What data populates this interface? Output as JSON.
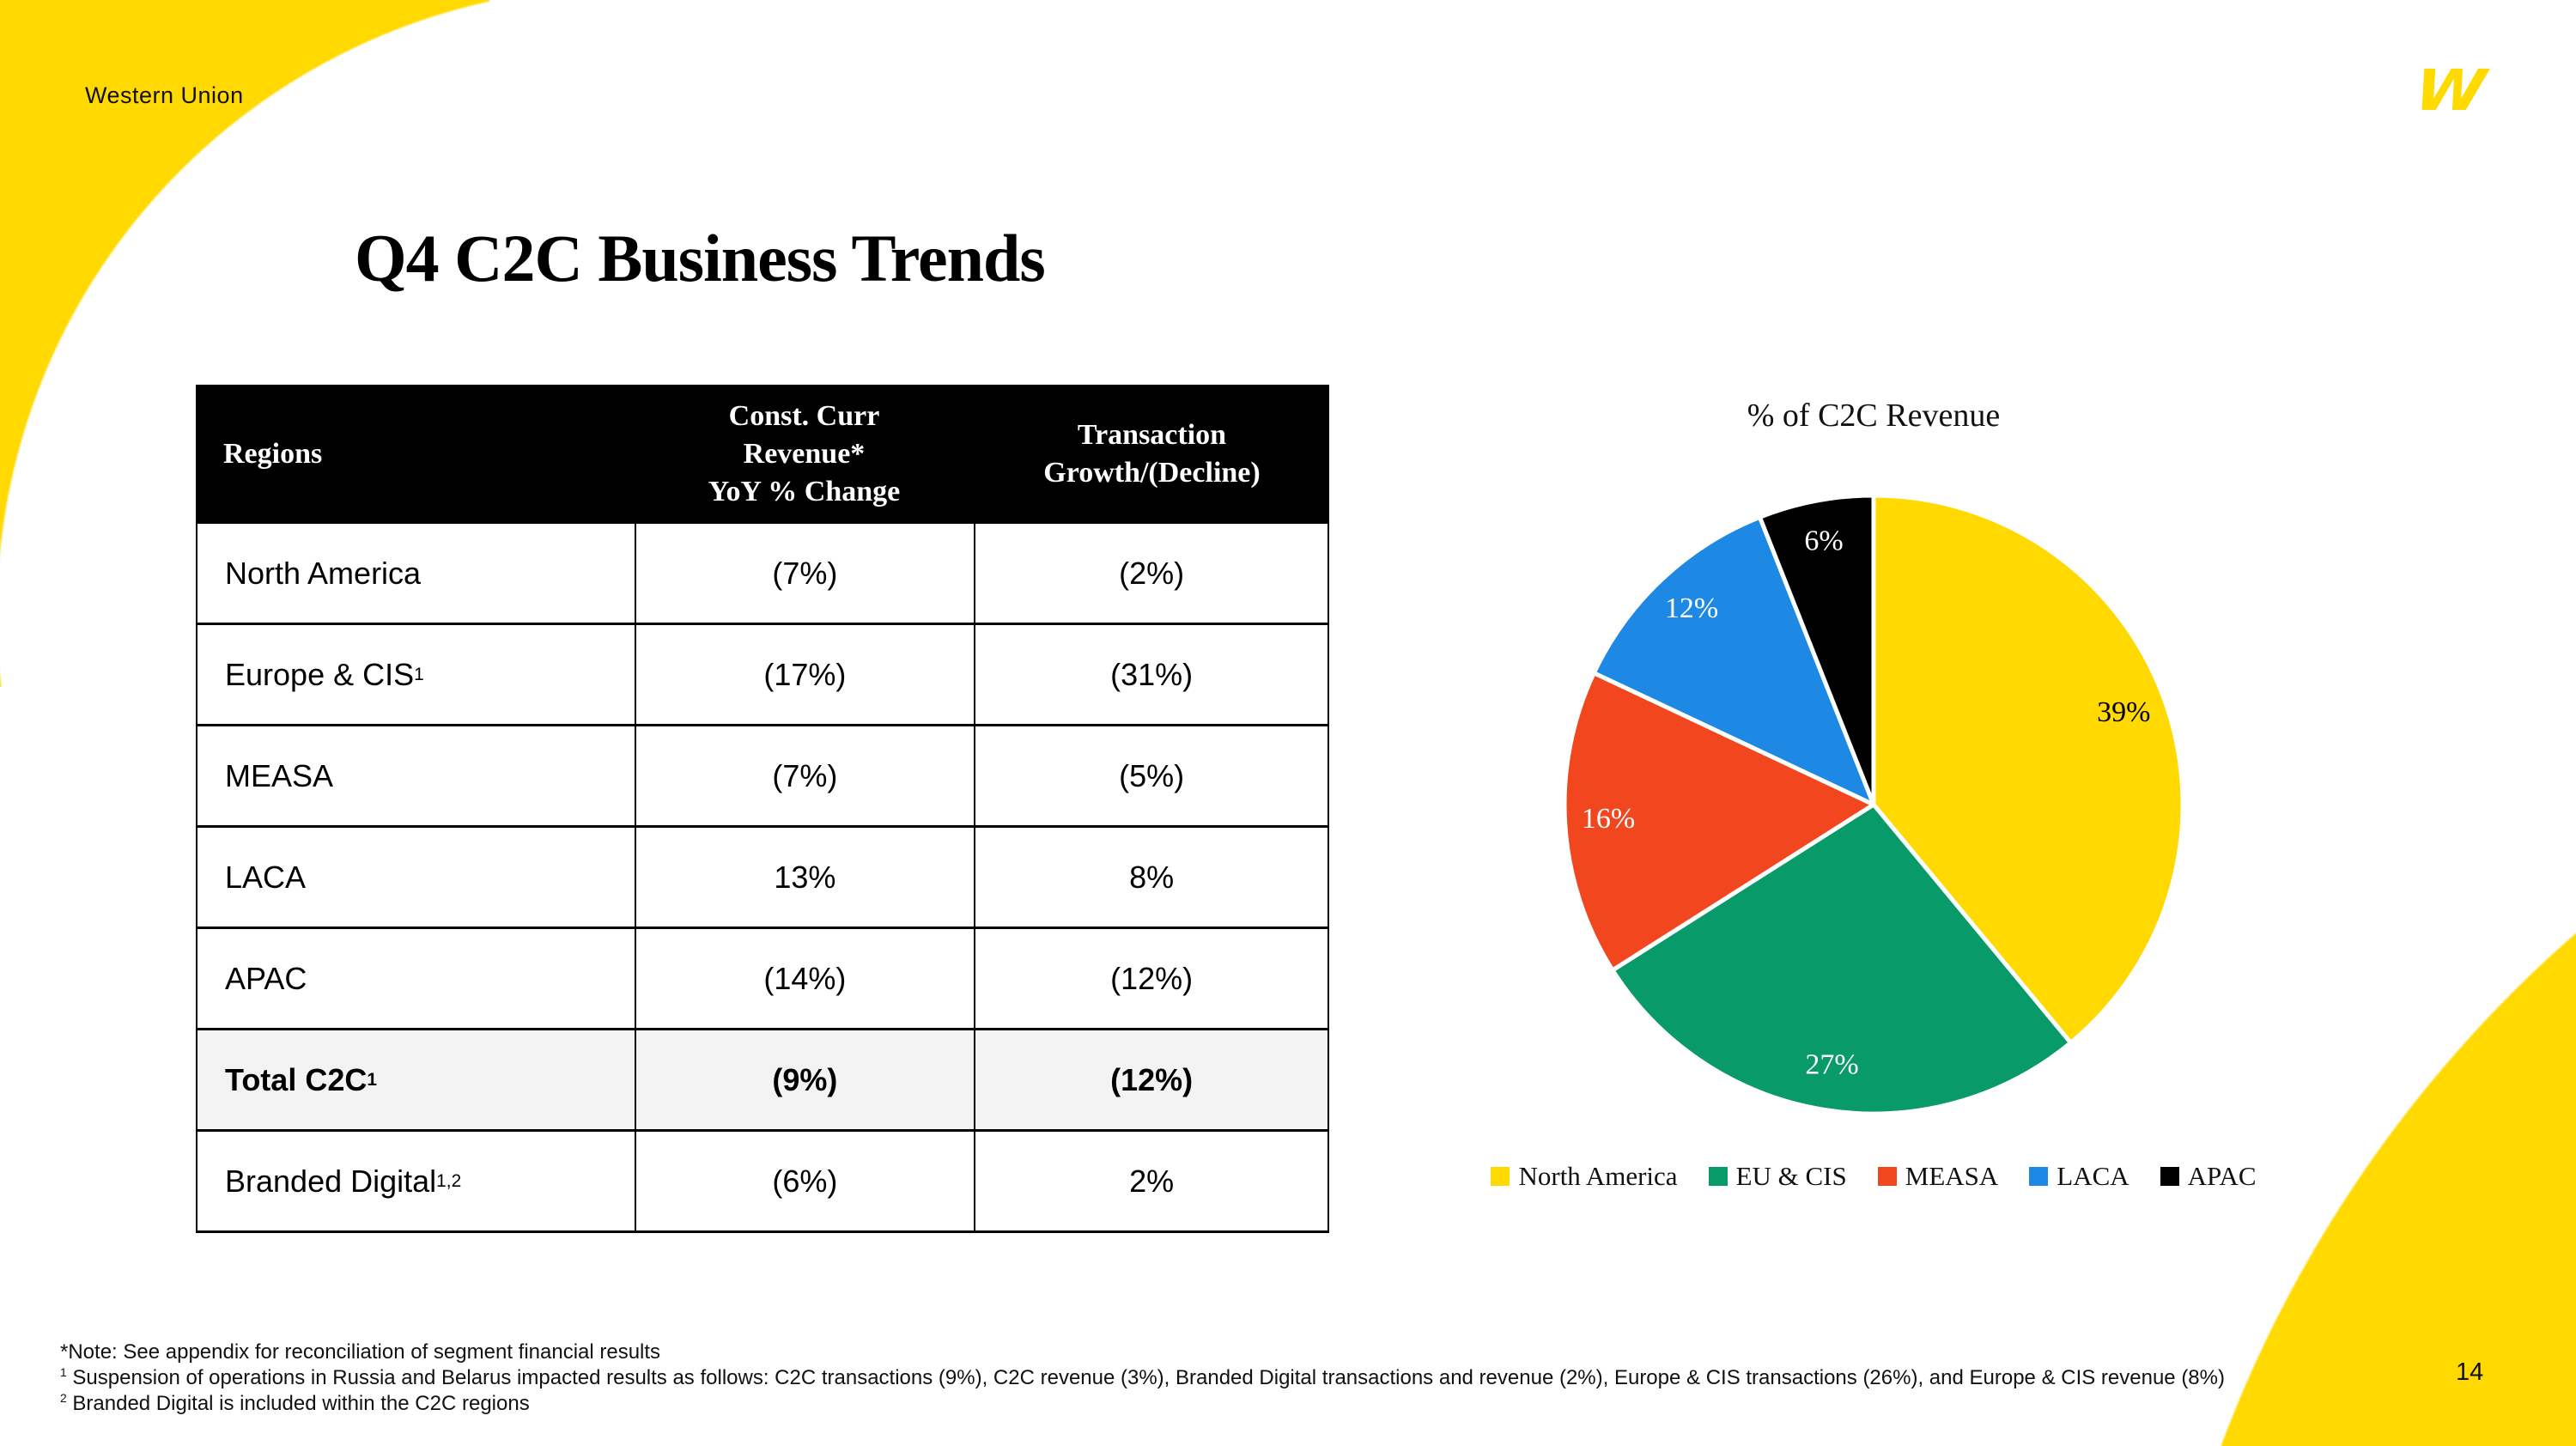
{
  "slide": {
    "brand": "Western Union",
    "logo_glyph": "W",
    "title": "Q4 C2C Business Trends",
    "page_number": "14"
  },
  "colors": {
    "brand_yellow": "#FFD900",
    "header_bg": "#000000",
    "header_text": "#ffffff",
    "total_row_bg": "#f3f3f3",
    "table_border": "#000000"
  },
  "table": {
    "headers": [
      {
        "id": "regions",
        "lines": [
          "Regions"
        ]
      },
      {
        "id": "const-curr-revenue",
        "lines": [
          "Const. Curr",
          "Revenue*",
          "YoY % Change"
        ]
      },
      {
        "id": "transaction-growth",
        "lines": [
          "Transaction",
          "Growth/(Decline)"
        ]
      }
    ],
    "rows": [
      {
        "region": "North America",
        "sup": "",
        "revenue": "(7%)",
        "transactions": "(2%)",
        "emphasis": false
      },
      {
        "region": "Europe & CIS",
        "sup": "1",
        "revenue": "(17%)",
        "transactions": "(31%)",
        "emphasis": false
      },
      {
        "region": "MEASA",
        "sup": "",
        "revenue": "(7%)",
        "transactions": "(5%)",
        "emphasis": false
      },
      {
        "region": "LACA",
        "sup": "",
        "revenue": "13%",
        "transactions": "8%",
        "emphasis": false
      },
      {
        "region": "APAC",
        "sup": "",
        "revenue": "(14%)",
        "transactions": "(12%)",
        "emphasis": false
      },
      {
        "region": "Total C2C",
        "sup": "1",
        "revenue": "(9%)",
        "transactions": "(12%)",
        "emphasis": true
      },
      {
        "region": "Branded Digital",
        "sup": "1,2",
        "revenue": "(6%)",
        "transactions": "2%",
        "emphasis": false
      }
    ]
  },
  "chart_data": {
    "type": "pie",
    "title": "% of C2C Revenue",
    "categories": [
      "North America",
      "EU & CIS",
      "MEASA",
      "LACA",
      "APAC"
    ],
    "values": [
      39,
      27,
      16,
      12,
      6
    ],
    "unit": "%",
    "colors": [
      "#FFD900",
      "#089A68",
      "#F2461F",
      "#1E88E5",
      "#000000"
    ],
    "label_colors": [
      "#000000",
      "#ffffff",
      "#ffffff",
      "#ffffff",
      "#ffffff"
    ],
    "start_angle_deg": 0,
    "direction": "clockwise",
    "legend_position": "bottom",
    "slice_gap_stroke": "#ffffff"
  },
  "footnotes": [
    {
      "sup": "",
      "text": "*Note: See appendix for reconciliation of segment financial results"
    },
    {
      "sup": "1",
      "text": " Suspension of operations in Russia and Belarus impacted results as follows: C2C transactions (9%), C2C revenue (3%), Branded Digital transactions and revenue (2%), Europe & CIS transactions (26%), and Europe & CIS revenue (8%)"
    },
    {
      "sup": "2",
      "text": " Branded Digital is included within the C2C regions"
    }
  ]
}
